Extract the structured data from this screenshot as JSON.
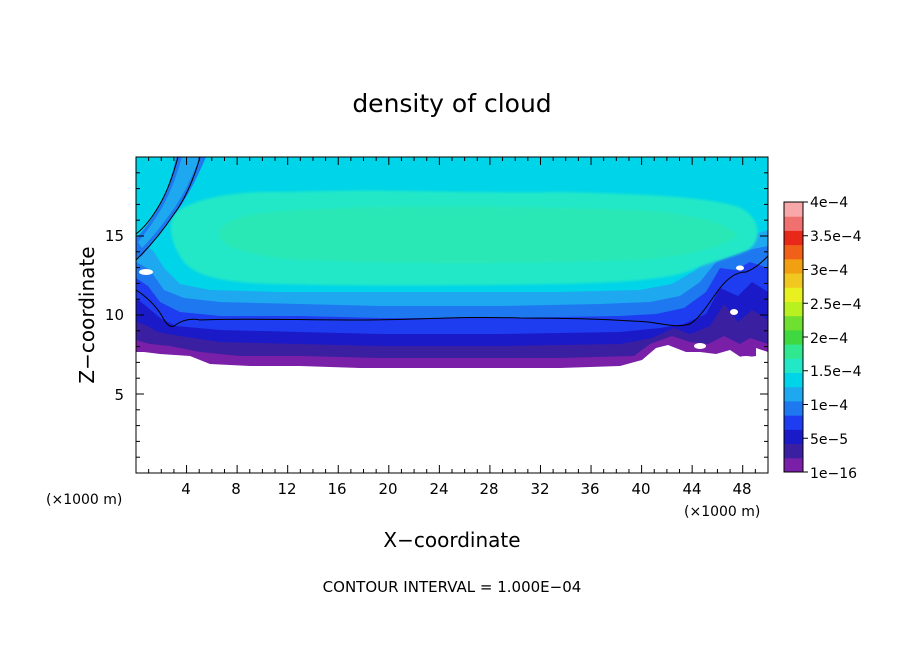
{
  "chart_data": {
    "type": "heatmap",
    "title": "density of cloud",
    "xlabel": "X−coordinate",
    "ylabel": "Z−coordinate",
    "x_unit_left": "(×1000 m)",
    "x_unit_right": "(×1000 m)",
    "footer": "CONTOUR INTERVAL = 1.000E−04",
    "xlim": [
      0,
      50
    ],
    "ylim": [
      0,
      20
    ],
    "x_ticks": [
      4,
      8,
      12,
      16,
      20,
      24,
      28,
      32,
      36,
      40,
      44,
      48
    ],
    "x_tick_labels": [
      "4",
      "8",
      "12",
      "16",
      "20",
      "24",
      "28",
      "32",
      "36",
      "40",
      "44",
      "48"
    ],
    "y_ticks": [
      5,
      10,
      15
    ],
    "y_tick_labels": [
      "5",
      "10",
      "15"
    ],
    "colorbar": {
      "labels": [
        "1e−16",
        "5e−5",
        "1e−4",
        "1.5e−4",
        "2e−4",
        "2.5e−4",
        "3e−4",
        "3.5e−4",
        "4e−4"
      ],
      "levels": [
        "#7a1fa8",
        "#3a1fa0",
        "#1a1ac8",
        "#1e3cf0",
        "#1e78f0",
        "#1ea8f0",
        "#00d4e8",
        "#22e8c8",
        "#30e890",
        "#40d840",
        "#70e030",
        "#b8f020",
        "#e8f020",
        "#f0c820",
        "#f0a010",
        "#f06018",
        "#e82818",
        "#f07070",
        "#f8a8a8"
      ]
    }
  }
}
